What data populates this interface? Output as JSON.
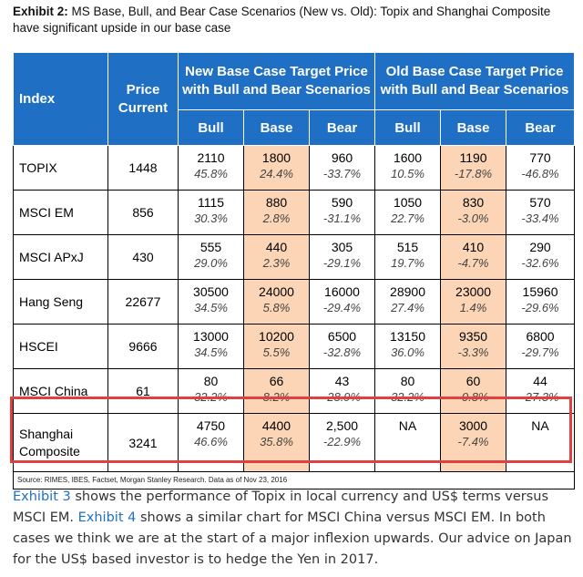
{
  "title": {
    "label": "Exhibit 2:",
    "text": "MS Base, Bull, and Bear Case Scenarios (New vs. Old): Topix and Shanghai Composite have significant upside in our base case"
  },
  "table": {
    "headers": {
      "index": "Index",
      "price_line1": "Price",
      "price_line2": "Current",
      "new_line1": "New Base Case Target Price",
      "new_line2": "with Bull and Bear Scenarios",
      "old_line1": "Old Base Case Target Price",
      "old_line2": "with Bull and Bear Scenarios",
      "bull": "Bull",
      "base": "Base",
      "bear": "Bear"
    },
    "rows": [
      {
        "name": "TOPIX",
        "name2": "",
        "price": "1448",
        "new": [
          {
            "v": "2110",
            "p": "45.8%"
          },
          {
            "v": "1800",
            "p": "24.4%"
          },
          {
            "v": "960",
            "p": "-33.7%"
          }
        ],
        "old": [
          {
            "v": "1600",
            "p": "10.5%"
          },
          {
            "v": "1190",
            "p": "-17.8%"
          },
          {
            "v": "770",
            "p": "-46.8%"
          }
        ]
      },
      {
        "name": "MSCI EM",
        "name2": "",
        "price": "856",
        "new": [
          {
            "v": "1115",
            "p": "30.3%"
          },
          {
            "v": "880",
            "p": "2.8%"
          },
          {
            "v": "590",
            "p": "-31.1%"
          }
        ],
        "old": [
          {
            "v": "1050",
            "p": "22.7%"
          },
          {
            "v": "830",
            "p": "-3.0%"
          },
          {
            "v": "570",
            "p": "-33.4%"
          }
        ]
      },
      {
        "name": "MSCI APxJ",
        "name2": "",
        "price": "430",
        "new": [
          {
            "v": "555",
            "p": "29.0%"
          },
          {
            "v": "440",
            "p": "2.3%"
          },
          {
            "v": "305",
            "p": "-29.1%"
          }
        ],
        "old": [
          {
            "v": "515",
            "p": "19.7%"
          },
          {
            "v": "410",
            "p": "-4.7%"
          },
          {
            "v": "290",
            "p": "-32.6%"
          }
        ]
      },
      {
        "name": "Hang Seng",
        "name2": "",
        "price": "22677",
        "new": [
          {
            "v": "30500",
            "p": "34.5%"
          },
          {
            "v": "24000",
            "p": "5.8%"
          },
          {
            "v": "16000",
            "p": "-29.4%"
          }
        ],
        "old": [
          {
            "v": "28900",
            "p": "27.4%"
          },
          {
            "v": "23000",
            "p": "1.4%"
          },
          {
            "v": "15960",
            "p": "-29.6%"
          }
        ]
      },
      {
        "name": "HSCEI",
        "name2": "",
        "price": "9666",
        "new": [
          {
            "v": "13000",
            "p": "34.5%"
          },
          {
            "v": "10200",
            "p": "5.5%"
          },
          {
            "v": "6500",
            "p": "-32.8%"
          }
        ],
        "old": [
          {
            "v": "13150",
            "p": "36.0%"
          },
          {
            "v": "9350",
            "p": "-3.3%"
          },
          {
            "v": "6800",
            "p": "-29.7%"
          }
        ]
      },
      {
        "name": "MSCI China",
        "name2": "",
        "price": "61",
        "new": [
          {
            "v": "80",
            "p": "32.2%"
          },
          {
            "v": "66",
            "p": "8.2%"
          },
          {
            "v": "43",
            "p": "-28.9%"
          }
        ],
        "old": [
          {
            "v": "80",
            "p": "32.2%"
          },
          {
            "v": "60",
            "p": "-0.8%"
          },
          {
            "v": "44",
            "p": "-27.3%"
          }
        ]
      },
      {
        "name": "Shanghai",
        "name2": "Composite",
        "price": "3241",
        "new": [
          {
            "v": "4750",
            "p": "46.6%"
          },
          {
            "v": "4400",
            "p": "35.8%"
          },
          {
            "v": "2,500",
            "p": "-22.9%"
          }
        ],
        "old": [
          {
            "v": "NA",
            "p": ""
          },
          {
            "v": "3000",
            "p": "-7.4%"
          },
          {
            "v": "NA",
            "p": ""
          }
        ]
      }
    ],
    "source": "Source: RIMES, IBES, Factset, Morgan Stanley Research. Data as of Nov 23, 2016"
  },
  "paragraph": {
    "link1": "Exhibit 3",
    "text1": " shows the performance of Topix in local currency and US$ terms versus MSCI EM. ",
    "link2": "Exhibit 4",
    "text2": " shows a similar chart for MSCI China versus MSCI EM. In both cases we think we are at the start of a major inflexion upwards. Our advice on Japan for the US$ based investor is to hedge the Yen in 2017."
  },
  "colors": {
    "header_blue": "#1f6fc5",
    "base_peach": "#fbd5b5",
    "highlight_red": "#e0403f",
    "link_blue": "#1f6fc5"
  }
}
